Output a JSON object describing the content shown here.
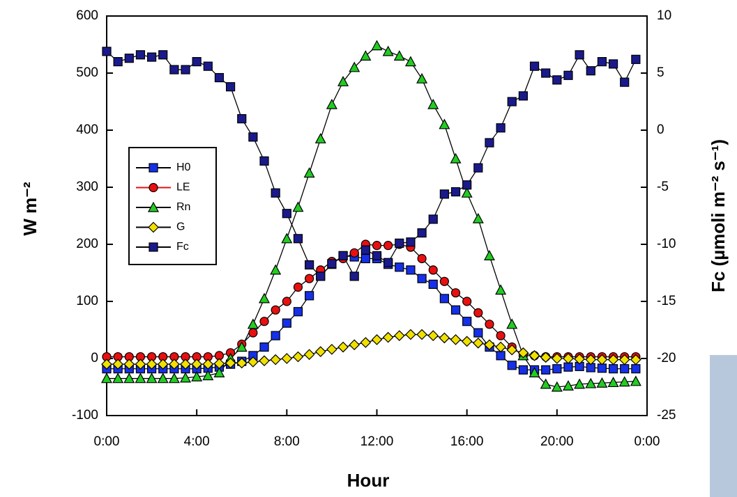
{
  "chart_data": {
    "type": "line",
    "xlabel": "Hour",
    "ylabel": "W m⁻²",
    "y2label": "Fc (µmoli m⁻² s⁻¹)",
    "x": [
      0,
      0.5,
      1,
      1.5,
      2,
      2.5,
      3,
      3.5,
      4,
      4.5,
      5,
      5.5,
      6,
      6.5,
      7,
      7.5,
      8,
      8.5,
      9,
      9.5,
      10,
      10.5,
      11,
      11.5,
      12,
      12.5,
      13,
      13.5,
      14,
      14.5,
      15,
      15.5,
      16,
      16.5,
      17,
      17.5,
      18,
      18.5,
      19,
      19.5,
      20,
      20.5,
      21,
      21.5,
      22,
      22.5,
      23,
      23.5
    ],
    "xlim": [
      0,
      24
    ],
    "xticks": [
      {
        "value": 0,
        "label": "0:00"
      },
      {
        "value": 4,
        "label": "4:00"
      },
      {
        "value": 8,
        "label": "8:00"
      },
      {
        "value": 12,
        "label": "12:00"
      },
      {
        "value": 16,
        "label": "16:00"
      },
      {
        "value": 20,
        "label": "20:00"
      },
      {
        "value": 24,
        "label": "0:00"
      }
    ],
    "ylim": [
      -100,
      600
    ],
    "yticks": [
      -100,
      0,
      100,
      200,
      300,
      400,
      500,
      600
    ],
    "y2lim": [
      -25,
      10
    ],
    "y2ticks": [
      -25,
      -20,
      -15,
      -10,
      -5,
      0,
      5,
      10
    ],
    "legend": "upper left",
    "series": [
      {
        "name": "H0",
        "color": "#1530e8",
        "marker": "square",
        "values": [
          -18,
          -18,
          -18,
          -18,
          -18,
          -18,
          -18,
          -18,
          -18,
          -17,
          -15,
          -10,
          -5,
          5,
          20,
          40,
          62,
          82,
          110,
          145,
          165,
          180,
          178,
          175,
          175,
          165,
          160,
          155,
          140,
          130,
          105,
          85,
          65,
          45,
          20,
          5,
          -12,
          -20,
          -20,
          -20,
          -18,
          -15,
          -14,
          -16,
          -17,
          -18,
          -18,
          -18
        ]
      },
      {
        "name": "LE",
        "color": "#e81010",
        "marker": "circle",
        "values": [
          3,
          3,
          3,
          3,
          3,
          3,
          3,
          3,
          3,
          3,
          5,
          10,
          25,
          45,
          65,
          85,
          100,
          125,
          140,
          155,
          170,
          175,
          185,
          200,
          198,
          198,
          200,
          195,
          175,
          155,
          135,
          115,
          100,
          80,
          60,
          40,
          20,
          5,
          5,
          3,
          3,
          3,
          3,
          3,
          3,
          3,
          3,
          3
        ]
      },
      {
        "name": "Rn",
        "color": "#22cc22",
        "marker": "triangle",
        "values": [
          -35,
          -35,
          -35,
          -35,
          -35,
          -35,
          -35,
          -34,
          -32,
          -30,
          -25,
          0,
          20,
          60,
          105,
          155,
          210,
          265,
          325,
          385,
          445,
          485,
          510,
          530,
          548,
          538,
          530,
          520,
          490,
          445,
          410,
          350,
          290,
          245,
          180,
          120,
          60,
          5,
          -25,
          -45,
          -50,
          -48,
          -45,
          -44,
          -43,
          -42,
          -41,
          -40
        ]
      },
      {
        "name": "G",
        "color": "#f0e000",
        "marker": "diamond",
        "values": [
          -10,
          -10,
          -10,
          -10,
          -10,
          -10,
          -10,
          -10,
          -10,
          -10,
          -9,
          -8,
          -8,
          -6,
          -4,
          -2,
          0,
          3,
          7,
          12,
          16,
          20,
          24,
          28,
          33,
          37,
          40,
          42,
          42,
          40,
          36,
          33,
          30,
          27,
          24,
          20,
          15,
          10,
          5,
          2,
          0,
          0,
          -1,
          -2,
          -2,
          -2,
          -2,
          -2
        ]
      },
      {
        "name": "Fc",
        "color": "#1a1a8c",
        "marker": "square",
        "axis": "y2",
        "values": [
          6.9,
          6.0,
          6.3,
          6.6,
          6.4,
          6.6,
          5.3,
          5.3,
          6.0,
          5.6,
          4.6,
          3.8,
          1.0,
          -0.6,
          -2.7,
          -5.5,
          -7.3,
          -9.5,
          -11.8,
          -12.8,
          -11.7,
          -11.0,
          -12.8,
          -10.5,
          -11.0,
          -11.6,
          -9.9,
          -9.8,
          -9.0,
          -7.8,
          -5.6,
          -5.4,
          -4.8,
          -3.3,
          -1.1,
          0.2,
          2.5,
          3.0,
          5.6,
          5.0,
          4.4,
          4.8,
          6.6,
          5.2,
          6.0,
          5.8,
          4.2,
          6.2
        ]
      }
    ]
  }
}
